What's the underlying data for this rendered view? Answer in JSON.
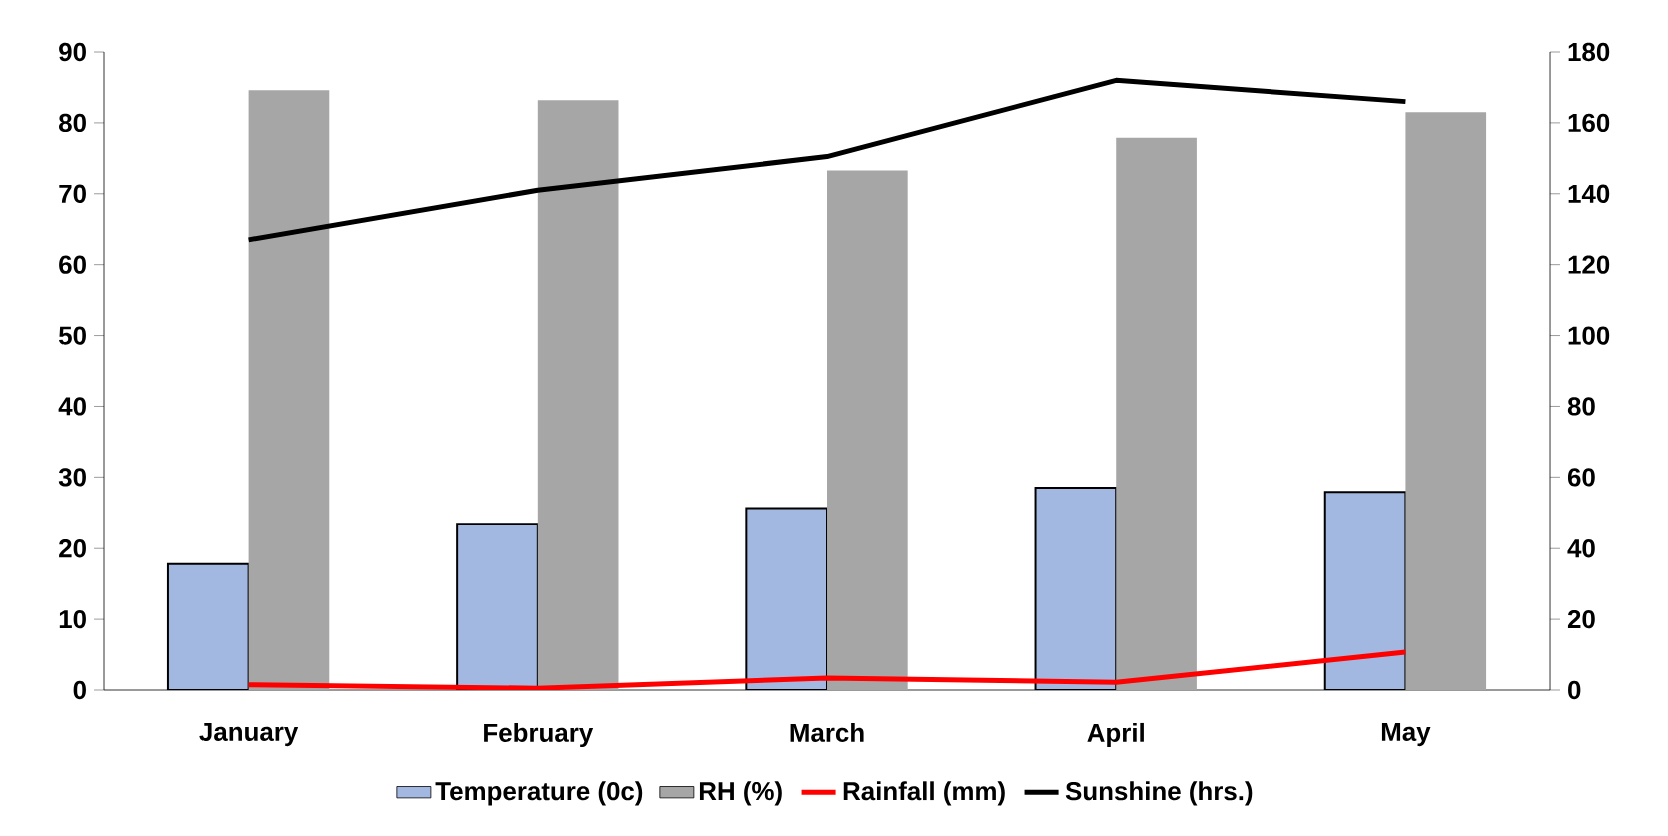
{
  "chart_data": {
    "type": "bar",
    "categories": [
      "January",
      "February",
      "March",
      "April",
      "May"
    ],
    "series": [
      {
        "name": "Temperature (0c)",
        "color": "#a3b8e0",
        "values": [
          17.8,
          23.4,
          25.6,
          28.5,
          27.9
        ]
      },
      {
        "name": "RH (%)",
        "color": "#a6a6a6",
        "values": [
          84.6,
          83.2,
          73.3,
          77.9,
          81.5
        ]
      },
      {
        "name": "Rainfall (mm)",
        "type": "line",
        "axis": "y2",
        "color": "#ff0000",
        "values": [
          1.5,
          0.5,
          3.4,
          2.2,
          10.7
        ]
      },
      {
        "name": "Sunshine (hrs.)",
        "type": "line",
        "axis": "y2",
        "color": "#000000",
        "values": [
          127,
          141,
          150.5,
          172,
          166
        ]
      }
    ],
    "ylim": [
      0,
      90
    ],
    "yticks": [
      0,
      10,
      20,
      30,
      40,
      50,
      60,
      70,
      80,
      90
    ],
    "y2lim": [
      0,
      180
    ],
    "y2ticks": [
      0,
      20,
      40,
      60,
      80,
      100,
      120,
      140,
      160,
      180
    ],
    "legend": "bottom"
  }
}
